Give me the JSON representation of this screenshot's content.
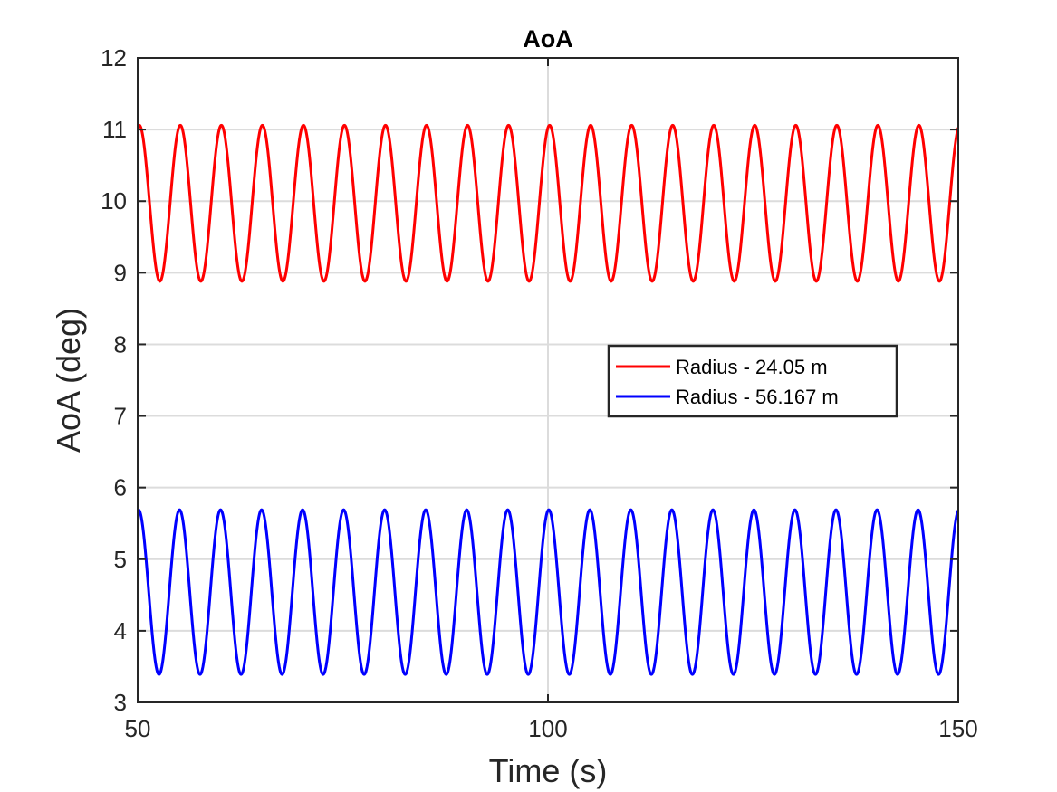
{
  "chart_data": {
    "type": "line",
    "title": "AoA",
    "xlabel": "Time (s)",
    "ylabel": "AoA (deg)",
    "xlim": [
      50,
      150
    ],
    "ylim": [
      3,
      12
    ],
    "xticks": [
      50,
      100,
      150
    ],
    "yticks": [
      3,
      4,
      5,
      6,
      7,
      8,
      9,
      10,
      11,
      12
    ],
    "grid": true,
    "legend_position": "right-center",
    "series": [
      {
        "name": "Radius - 24.05 m",
        "color": "#ff0000",
        "mean": 9.97,
        "amplitude": 1.09,
        "period_s": 5.0,
        "phase_peak_time_s": 50.2,
        "x_start": 50,
        "x_end": 150
      },
      {
        "name": "Radius - 56.167 m",
        "color": "#0000ff",
        "mean": 4.54,
        "amplitude": 1.15,
        "period_s": 5.0,
        "phase_peak_time_s": 50.1,
        "x_start": 50,
        "x_end": 150
      }
    ]
  }
}
